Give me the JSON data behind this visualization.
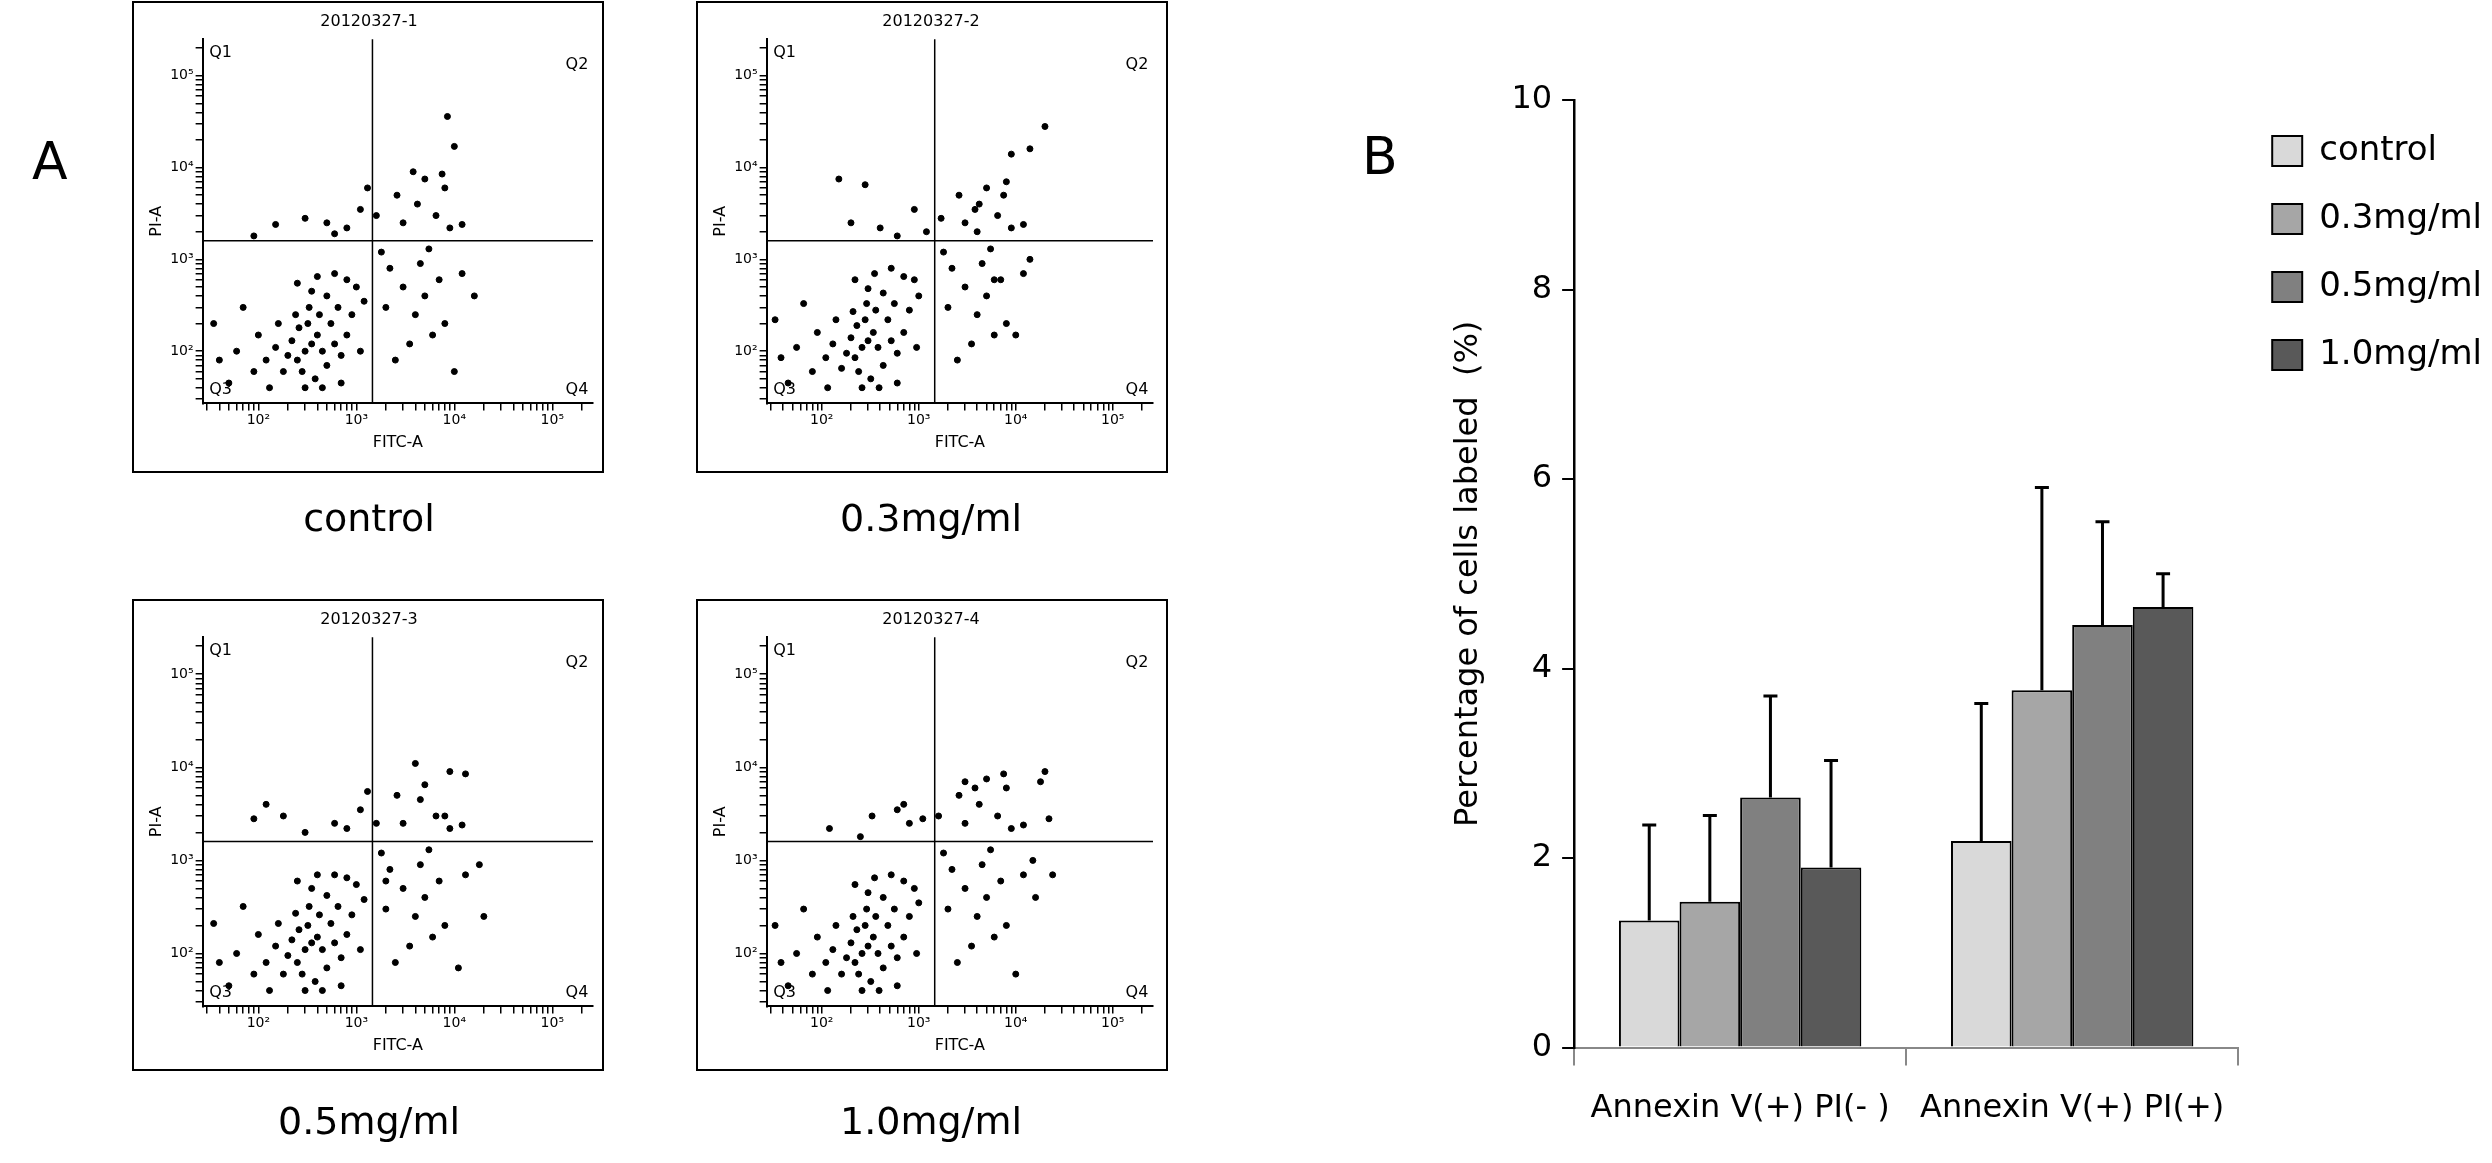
{
  "chart_data": [
    {
      "type": "scatter",
      "title": "20120327-1",
      "subtitle": "control",
      "xlabel": "FITC-A",
      "ylabel": "PI-A",
      "xlim": [
        27,
        260000
      ],
      "ylim": [
        27,
        250000
      ],
      "log": "xy",
      "grid": false,
      "marker": "circle",
      "xticks": [
        {
          "value": 30,
          "label": null
        },
        {
          "value": 40,
          "label": null
        },
        {
          "value": 50,
          "label": null
        },
        {
          "value": 60,
          "label": null
        },
        {
          "value": 70,
          "label": null
        },
        {
          "value": 80,
          "label": null
        },
        {
          "value": 90,
          "label": null
        },
        {
          "value": 100,
          "label": "10²"
        },
        {
          "value": 200,
          "label": null
        },
        {
          "value": 300,
          "label": null
        },
        {
          "value": 400,
          "label": null
        },
        {
          "value": 500,
          "label": null
        },
        {
          "value": 600,
          "label": null
        },
        {
          "value": 700,
          "label": null
        },
        {
          "value": 800,
          "label": null
        },
        {
          "value": 900,
          "label": null
        },
        {
          "value": 1000,
          "label": "10³"
        },
        {
          "value": 2000,
          "label": null
        },
        {
          "value": 3000,
          "label": null
        },
        {
          "value": 4000,
          "label": null
        },
        {
          "value": 5000,
          "label": null
        },
        {
          "value": 6000,
          "label": null
        },
        {
          "value": 7000,
          "label": null
        },
        {
          "value": 8000,
          "label": null
        },
        {
          "value": 9000,
          "label": null
        },
        {
          "value": 10000,
          "label": "10⁴"
        },
        {
          "value": 20000,
          "label": null
        },
        {
          "value": 30000,
          "label": null
        },
        {
          "value": 40000,
          "label": null
        },
        {
          "value": 50000,
          "label": null
        },
        {
          "value": 60000,
          "label": null
        },
        {
          "value": 70000,
          "label": null
        },
        {
          "value": 80000,
          "label": null
        },
        {
          "value": 90000,
          "label": null
        },
        {
          "value": 100000,
          "label": "10⁵"
        },
        {
          "value": 200000,
          "label": null
        }
      ],
      "yticks": [
        {
          "value": 30,
          "label": null
        },
        {
          "value": 40,
          "label": null
        },
        {
          "value": 50,
          "label": null
        },
        {
          "value": 60,
          "label": null
        },
        {
          "value": 70,
          "label": null
        },
        {
          "value": 80,
          "label": null
        },
        {
          "value": 90,
          "label": null
        },
        {
          "value": 100,
          "label": "10²"
        },
        {
          "value": 200,
          "label": null
        },
        {
          "value": 300,
          "label": null
        },
        {
          "value": 400,
          "label": null
        },
        {
          "value": 500,
          "label": null
        },
        {
          "value": 600,
          "label": null
        },
        {
          "value": 700,
          "label": null
        },
        {
          "value": 800,
          "label": null
        },
        {
          "value": 900,
          "label": null
        },
        {
          "value": 1000,
          "label": "10³"
        },
        {
          "value": 2000,
          "label": null
        },
        {
          "value": 3000,
          "label": null
        },
        {
          "value": 4000,
          "label": null
        },
        {
          "value": 5000,
          "label": null
        },
        {
          "value": 6000,
          "label": null
        },
        {
          "value": 7000,
          "label": null
        },
        {
          "value": 8000,
          "label": null
        },
        {
          "value": 9000,
          "label": null
        },
        {
          "value": 10000,
          "label": "10⁴"
        },
        {
          "value": 20000,
          "label": null
        },
        {
          "value": 30000,
          "label": null
        },
        {
          "value": 40000,
          "label": null
        },
        {
          "value": 50000,
          "label": null
        },
        {
          "value": 60000,
          "label": null
        },
        {
          "value": 70000,
          "label": null
        },
        {
          "value": 80000,
          "label": null
        },
        {
          "value": 90000,
          "label": null
        },
        {
          "value": 100000,
          "label": "10⁵"
        },
        {
          "value": 200000,
          "label": null
        }
      ],
      "ref_lines": [
        {
          "axis": "x",
          "value": 1460,
          "color": "#000000"
        },
        {
          "axis": "y",
          "value": 1600,
          "color": "#000000"
        }
      ],
      "annotations": [
        "A",
        "Q1",
        "Q2",
        "Q3",
        "Q4"
      ],
      "series": [
        {
          "color": "#000000",
          "x": [
            300,
            250,
            350,
            400,
            200,
            280,
            320,
            450,
            500,
            380,
            220,
            260,
            180,
            150,
            120,
            600,
            550,
            420,
            330,
            240,
            700,
            800,
            650,
            500,
            350,
            160,
            100,
            90,
            60,
            40,
            50,
            35,
            70,
            130,
            300,
            450,
            700,
            900,
            1000,
            800,
            600,
            400,
            250,
            1200,
            1100,
            2000,
            3000,
            4000,
            5000,
            6000,
            3500,
            2500,
            8000,
            2200,
            4500,
            7000,
            10000,
            12000,
            16000,
            1800,
            5500,
            3000,
            4200,
            6500,
            2600,
            5000,
            8000,
            9000,
            12000,
            3800,
            1600,
            7500,
            10000,
            8500,
            500,
            800,
            1100,
            300,
            1300,
            150,
            90,
            600
          ],
          "values": [
            100,
            80,
            120,
            150,
            90,
            60,
            200,
            100,
            70,
            50,
            130,
            180,
            60,
            110,
            80,
            120,
            200,
            250,
            300,
            250,
            90,
            150,
            300,
            400,
            450,
            200,
            150,
            60,
            100,
            80,
            45,
            200,
            300,
            40,
            40,
            40,
            45,
            250,
            500,
            600,
            700,
            650,
            550,
            350,
            100,
            300,
            500,
            250,
            400,
            150,
            120,
            80,
            200,
            800,
            900,
            600,
            60,
            700,
            400,
            1200,
            1300,
            2500,
            4000,
            3000,
            5000,
            7500,
            6000,
            2200,
            2400,
            9000,
            3000,
            8500,
            17000,
            36000,
            2500,
            2200,
            3500,
            2800,
            6000,
            2400,
            1800,
            1900
          ]
        }
      ]
    },
    {
      "type": "scatter",
      "title": "20120327-2",
      "subtitle": "0.3mg/ml",
      "xlabel": "FITC-A",
      "ylabel": "PI-A",
      "xlim": [
        27,
        260000
      ],
      "ylim": [
        27,
        250000
      ],
      "log": "xy",
      "grid": false,
      "marker": "circle",
      "xticks": [
        {
          "value": 30,
          "label": null
        },
        {
          "value": 40,
          "label": null
        },
        {
          "value": 50,
          "label": null
        },
        {
          "value": 60,
          "label": null
        },
        {
          "value": 70,
          "label": null
        },
        {
          "value": 80,
          "label": null
        },
        {
          "value": 90,
          "label": null
        },
        {
          "value": 100,
          "label": "10²"
        },
        {
          "value": 200,
          "label": null
        },
        {
          "value": 300,
          "label": null
        },
        {
          "value": 400,
          "label": null
        },
        {
          "value": 500,
          "label": null
        },
        {
          "value": 600,
          "label": null
        },
        {
          "value": 700,
          "label": null
        },
        {
          "value": 800,
          "label": null
        },
        {
          "value": 900,
          "label": null
        },
        {
          "value": 1000,
          "label": "10³"
        },
        {
          "value": 2000,
          "label": null
        },
        {
          "value": 3000,
          "label": null
        },
        {
          "value": 4000,
          "label": null
        },
        {
          "value": 5000,
          "label": null
        },
        {
          "value": 6000,
          "label": null
        },
        {
          "value": 7000,
          "label": null
        },
        {
          "value": 8000,
          "label": null
        },
        {
          "value": 9000,
          "label": null
        },
        {
          "value": 10000,
          "label": "10⁴"
        },
        {
          "value": 20000,
          "label": null
        },
        {
          "value": 30000,
          "label": null
        },
        {
          "value": 40000,
          "label": null
        },
        {
          "value": 50000,
          "label": null
        },
        {
          "value": 60000,
          "label": null
        },
        {
          "value": 70000,
          "label": null
        },
        {
          "value": 80000,
          "label": null
        },
        {
          "value": 90000,
          "label": null
        },
        {
          "value": 100000,
          "label": "10⁵"
        },
        {
          "value": 200000,
          "label": null
        }
      ],
      "yticks": [
        {
          "value": 30,
          "label": null
        },
        {
          "value": 40,
          "label": null
        },
        {
          "value": 50,
          "label": null
        },
        {
          "value": 60,
          "label": null
        },
        {
          "value": 70,
          "label": null
        },
        {
          "value": 80,
          "label": null
        },
        {
          "value": 90,
          "label": null
        },
        {
          "value": 100,
          "label": "10²"
        },
        {
          "value": 200,
          "label": null
        },
        {
          "value": 300,
          "label": null
        },
        {
          "value": 400,
          "label": null
        },
        {
          "value": 500,
          "label": null
        },
        {
          "value": 600,
          "label": null
        },
        {
          "value": 700,
          "label": null
        },
        {
          "value": 800,
          "label": null
        },
        {
          "value": 900,
          "label": null
        },
        {
          "value": 1000,
          "label": "10³"
        },
        {
          "value": 2000,
          "label": null
        },
        {
          "value": 3000,
          "label": null
        },
        {
          "value": 4000,
          "label": null
        },
        {
          "value": 5000,
          "label": null
        },
        {
          "value": 6000,
          "label": null
        },
        {
          "value": 7000,
          "label": null
        },
        {
          "value": 8000,
          "label": null
        },
        {
          "value": 9000,
          "label": null
        },
        {
          "value": 10000,
          "label": "10⁴"
        },
        {
          "value": 20000,
          "label": null
        },
        {
          "value": 30000,
          "label": null
        },
        {
          "value": 40000,
          "label": null
        },
        {
          "value": 50000,
          "label": null
        },
        {
          "value": 60000,
          "label": null
        },
        {
          "value": 70000,
          "label": null
        },
        {
          "value": 80000,
          "label": null
        },
        {
          "value": 90000,
          "label": null
        },
        {
          "value": 100000,
          "label": "10⁵"
        },
        {
          "value": 200000,
          "label": null
        }
      ],
      "ref_lines": [
        {
          "axis": "x",
          "value": 1460,
          "color": "#000000"
        },
        {
          "axis": "y",
          "value": 1600,
          "color": "#000000"
        }
      ],
      "annotations": [
        "Q1",
        "Q2",
        "Q3",
        "Q4"
      ],
      "series": [
        {
          "color": "#000000",
          "x": [
            260,
            220,
            300,
            340,
            180,
            240,
            280,
            380,
            430,
            320,
            200,
            230,
            160,
            130,
            110,
            520,
            480,
            360,
            290,
            210,
            600,
            700,
            560,
            430,
            300,
            140,
            90,
            80,
            55,
            38,
            45,
            33,
            65,
            115,
            260,
            390,
            600,
            800,
            900,
            700,
            520,
            350,
            220,
            1000,
            950,
            2000,
            3000,
            4000,
            5000,
            6000,
            3500,
            2500,
            8000,
            2200,
            4500,
            7000,
            10000,
            12000,
            14000,
            1800,
            5500,
            3000,
            4200,
            6500,
            2600,
            5000,
            8000,
            9000,
            12000,
            3800,
            1700,
            7500,
            14000,
            20000,
            9000,
            4000,
            6000,
            150,
            280,
            900,
            400,
            200,
            600,
            1200
          ],
          "values": [
            110,
            85,
            130,
            160,
            95,
            60,
            220,
            110,
            70,
            50,
            140,
            190,
            65,
            120,
            85,
            130,
            220,
            280,
            330,
            270,
            95,
            160,
            330,
            430,
            480,
            220,
            160,
            60,
            110,
            85,
            45,
            220,
            330,
            40,
            40,
            40,
            45,
            280,
            600,
            650,
            800,
            700,
            600,
            400,
            110,
            300,
            500,
            250,
            400,
            150,
            120,
            80,
            200,
            800,
            900,
            600,
            150,
            700,
            1000,
            1200,
            1300,
            2500,
            4000,
            3000,
            5000,
            6000,
            7000,
            2200,
            2400,
            3500,
            2800,
            5000,
            16000,
            28000,
            14000,
            2000,
            600,
            7500,
            6500,
            3500,
            2200,
            2500,
            1800,
            2000
          ]
        }
      ]
    },
    {
      "type": "scatter",
      "title": "20120327-3",
      "subtitle": "0.5mg/ml",
      "xlabel": "FITC-A",
      "ylabel": "PI-A",
      "xlim": [
        27,
        260000
      ],
      "ylim": [
        27,
        250000
      ],
      "log": "xy",
      "grid": false,
      "marker": "circle",
      "xticks": [
        {
          "value": 30,
          "label": null
        },
        {
          "value": 40,
          "label": null
        },
        {
          "value": 50,
          "label": null
        },
        {
          "value": 60,
          "label": null
        },
        {
          "value": 70,
          "label": null
        },
        {
          "value": 80,
          "label": null
        },
        {
          "value": 90,
          "label": null
        },
        {
          "value": 100,
          "label": "10²"
        },
        {
          "value": 200,
          "label": null
        },
        {
          "value": 300,
          "label": null
        },
        {
          "value": 400,
          "label": null
        },
        {
          "value": 500,
          "label": null
        },
        {
          "value": 600,
          "label": null
        },
        {
          "value": 700,
          "label": null
        },
        {
          "value": 800,
          "label": null
        },
        {
          "value": 900,
          "label": null
        },
        {
          "value": 1000,
          "label": "10³"
        },
        {
          "value": 2000,
          "label": null
        },
        {
          "value": 3000,
          "label": null
        },
        {
          "value": 4000,
          "label": null
        },
        {
          "value": 5000,
          "label": null
        },
        {
          "value": 6000,
          "label": null
        },
        {
          "value": 7000,
          "label": null
        },
        {
          "value": 8000,
          "label": null
        },
        {
          "value": 9000,
          "label": null
        },
        {
          "value": 10000,
          "label": "10⁴"
        },
        {
          "value": 20000,
          "label": null
        },
        {
          "value": 30000,
          "label": null
        },
        {
          "value": 40000,
          "label": null
        },
        {
          "value": 50000,
          "label": null
        },
        {
          "value": 60000,
          "label": null
        },
        {
          "value": 70000,
          "label": null
        },
        {
          "value": 80000,
          "label": null
        },
        {
          "value": 90000,
          "label": null
        },
        {
          "value": 100000,
          "label": "10⁵"
        },
        {
          "value": 200000,
          "label": null
        }
      ],
      "yticks": [
        {
          "value": 30,
          "label": null
        },
        {
          "value": 40,
          "label": null
        },
        {
          "value": 50,
          "label": null
        },
        {
          "value": 60,
          "label": null
        },
        {
          "value": 70,
          "label": null
        },
        {
          "value": 80,
          "label": null
        },
        {
          "value": 90,
          "label": null
        },
        {
          "value": 100,
          "label": "10²"
        },
        {
          "value": 200,
          "label": null
        },
        {
          "value": 300,
          "label": null
        },
        {
          "value": 400,
          "label": null
        },
        {
          "value": 500,
          "label": null
        },
        {
          "value": 600,
          "label": null
        },
        {
          "value": 700,
          "label": null
        },
        {
          "value": 800,
          "label": null
        },
        {
          "value": 900,
          "label": null
        },
        {
          "value": 1000,
          "label": "10³"
        },
        {
          "value": 2000,
          "label": null
        },
        {
          "value": 3000,
          "label": null
        },
        {
          "value": 4000,
          "label": null
        },
        {
          "value": 5000,
          "label": null
        },
        {
          "value": 6000,
          "label": null
        },
        {
          "value": 7000,
          "label": null
        },
        {
          "value": 8000,
          "label": null
        },
        {
          "value": 9000,
          "label": null
        },
        {
          "value": 10000,
          "label": "10⁴"
        },
        {
          "value": 20000,
          "label": null
        },
        {
          "value": 30000,
          "label": null
        },
        {
          "value": 40000,
          "label": null
        },
        {
          "value": 50000,
          "label": null
        },
        {
          "value": 60000,
          "label": null
        },
        {
          "value": 70000,
          "label": null
        },
        {
          "value": 80000,
          "label": null
        },
        {
          "value": 90000,
          "label": null
        },
        {
          "value": 100000,
          "label": "10⁵"
        },
        {
          "value": 200000,
          "label": null
        }
      ],
      "ref_lines": [
        {
          "axis": "x",
          "value": 1460,
          "color": "#000000"
        },
        {
          "axis": "y",
          "value": 1600,
          "color": "#000000"
        }
      ],
      "annotations": [
        "Q1",
        "Q2",
        "Q3",
        "Q4"
      ],
      "series": [
        {
          "color": "#000000",
          "x": [
            300,
            250,
            350,
            400,
            200,
            280,
            320,
            450,
            500,
            380,
            220,
            260,
            180,
            150,
            120,
            600,
            550,
            420,
            330,
            240,
            700,
            800,
            650,
            500,
            350,
            160,
            100,
            90,
            60,
            40,
            50,
            35,
            70,
            130,
            300,
            450,
            700,
            900,
            1000,
            800,
            600,
            400,
            250,
            1200,
            1100,
            2000,
            3000,
            4000,
            5000,
            6000,
            3500,
            2500,
            8000,
            2200,
            4500,
            7000,
            11000,
            13000,
            18000,
            1800,
            5500,
            3000,
            4500,
            6500,
            2600,
            5000,
            9000,
            9000,
            12000,
            4000,
            1600,
            8000,
            13000,
            2000,
            20000,
            600,
            180,
            90,
            120,
            800,
            1100,
            300,
            1300
          ],
          "values": [
            110,
            80,
            130,
            150,
            95,
            60,
            200,
            110,
            70,
            50,
            140,
            180,
            60,
            120,
            80,
            130,
            210,
            260,
            320,
            270,
            90,
            160,
            320,
            420,
            500,
            210,
            160,
            60,
            100,
            80,
            45,
            210,
            320,
            40,
            40,
            40,
            45,
            260,
            550,
            650,
            700,
            700,
            600,
            380,
            110,
            300,
            500,
            250,
            400,
            150,
            120,
            80,
            200,
            800,
            900,
            600,
            70,
            700,
            900,
            1200,
            1300,
            2500,
            4500,
            3000,
            5000,
            6500,
            9000,
            2200,
            2400,
            11000,
            2500,
            3000,
            8500,
            600,
            250,
            2500,
            3000,
            2800,
            4000,
            2200,
            3500,
            2000,
            5500
          ]
        }
      ]
    },
    {
      "type": "scatter",
      "title": "20120327-4",
      "subtitle": "1.0mg/ml",
      "xlabel": "FITC-A",
      "ylabel": "PI-A",
      "xlim": [
        27,
        260000
      ],
      "ylim": [
        27,
        250000
      ],
      "log": "xy",
      "grid": false,
      "marker": "circle",
      "xticks": [
        {
          "value": 30,
          "label": null
        },
        {
          "value": 40,
          "label": null
        },
        {
          "value": 50,
          "label": null
        },
        {
          "value": 60,
          "label": null
        },
        {
          "value": 70,
          "label": null
        },
        {
          "value": 80,
          "label": null
        },
        {
          "value": 90,
          "label": null
        },
        {
          "value": 100,
          "label": "10²"
        },
        {
          "value": 200,
          "label": null
        },
        {
          "value": 300,
          "label": null
        },
        {
          "value": 400,
          "label": null
        },
        {
          "value": 500,
          "label": null
        },
        {
          "value": 600,
          "label": null
        },
        {
          "value": 700,
          "label": null
        },
        {
          "value": 800,
          "label": null
        },
        {
          "value": 900,
          "label": null
        },
        {
          "value": 1000,
          "label": "10³"
        },
        {
          "value": 2000,
          "label": null
        },
        {
          "value": 3000,
          "label": null
        },
        {
          "value": 4000,
          "label": null
        },
        {
          "value": 5000,
          "label": null
        },
        {
          "value": 6000,
          "label": null
        },
        {
          "value": 7000,
          "label": null
        },
        {
          "value": 8000,
          "label": null
        },
        {
          "value": 9000,
          "label": null
        },
        {
          "value": 10000,
          "label": "10⁴"
        },
        {
          "value": 20000,
          "label": null
        },
        {
          "value": 30000,
          "label": null
        },
        {
          "value": 40000,
          "label": null
        },
        {
          "value": 50000,
          "label": null
        },
        {
          "value": 60000,
          "label": null
        },
        {
          "value": 70000,
          "label": null
        },
        {
          "value": 80000,
          "label": null
        },
        {
          "value": 90000,
          "label": null
        },
        {
          "value": 100000,
          "label": "10⁵"
        },
        {
          "value": 200000,
          "label": null
        }
      ],
      "yticks": [
        {
          "value": 30,
          "label": null
        },
        {
          "value": 40,
          "label": null
        },
        {
          "value": 50,
          "label": null
        },
        {
          "value": 60,
          "label": null
        },
        {
          "value": 70,
          "label": null
        },
        {
          "value": 80,
          "label": null
        },
        {
          "value": 90,
          "label": null
        },
        {
          "value": 100,
          "label": "10²"
        },
        {
          "value": 200,
          "label": null
        },
        {
          "value": 300,
          "label": null
        },
        {
          "value": 400,
          "label": null
        },
        {
          "value": 500,
          "label": null
        },
        {
          "value": 600,
          "label": null
        },
        {
          "value": 700,
          "label": null
        },
        {
          "value": 800,
          "label": null
        },
        {
          "value": 900,
          "label": null
        },
        {
          "value": 1000,
          "label": "10³"
        },
        {
          "value": 2000,
          "label": null
        },
        {
          "value": 3000,
          "label": null
        },
        {
          "value": 4000,
          "label": null
        },
        {
          "value": 5000,
          "label": null
        },
        {
          "value": 6000,
          "label": null
        },
        {
          "value": 7000,
          "label": null
        },
        {
          "value": 8000,
          "label": null
        },
        {
          "value": 9000,
          "label": null
        },
        {
          "value": 10000,
          "label": "10⁴"
        },
        {
          "value": 20000,
          "label": null
        },
        {
          "value": 30000,
          "label": null
        },
        {
          "value": 40000,
          "label": null
        },
        {
          "value": 50000,
          "label": null
        },
        {
          "value": 60000,
          "label": null
        },
        {
          "value": 70000,
          "label": null
        },
        {
          "value": 80000,
          "label": null
        },
        {
          "value": 90000,
          "label": null
        },
        {
          "value": 100000,
          "label": "10⁵"
        },
        {
          "value": 200000,
          "label": null
        }
      ],
      "ref_lines": [
        {
          "axis": "x",
          "value": 1460,
          "color": "#000000"
        },
        {
          "axis": "y",
          "value": 1600,
          "color": "#000000"
        }
      ],
      "annotations": [
        "Q1",
        "Q2",
        "Q3",
        "Q4"
      ],
      "series": [
        {
          "color": "#000000",
          "x": [
            260,
            220,
            300,
            340,
            180,
            240,
            280,
            380,
            430,
            320,
            200,
            230,
            160,
            130,
            110,
            520,
            480,
            360,
            290,
            210,
            600,
            700,
            560,
            430,
            300,
            140,
            90,
            80,
            55,
            38,
            45,
            33,
            65,
            115,
            260,
            390,
            600,
            800,
            900,
            700,
            520,
            350,
            220,
            1000,
            950,
            2000,
            3000,
            4000,
            5000,
            6000,
            3500,
            2500,
            8000,
            2200,
            4500,
            7000,
            10000,
            12000,
            16000,
            1800,
            5500,
            3000,
            4200,
            6500,
            2600,
            5000,
            8000,
            9000,
            12000,
            3800,
            1600,
            7500,
            20000,
            22000,
            18000,
            3000,
            15000,
            24000,
            120,
            330,
            600,
            800,
            1100,
            250,
            700
          ],
          "values": [
            100,
            80,
            120,
            150,
            90,
            60,
            200,
            100,
            70,
            50,
            130,
            180,
            60,
            110,
            80,
            120,
            200,
            250,
            300,
            250,
            90,
            150,
            300,
            400,
            450,
            200,
            150,
            60,
            100,
            80,
            45,
            200,
            300,
            40,
            40,
            40,
            45,
            250,
            500,
            600,
            700,
            650,
            550,
            350,
            100,
            300,
            500,
            250,
            400,
            150,
            120,
            80,
            200,
            800,
            900,
            600,
            60,
            700,
            400,
            1200,
            1300,
            2500,
            4000,
            3000,
            5000,
            7500,
            6000,
            2200,
            2400,
            6000,
            3000,
            8500,
            9000,
            2800,
            7000,
            7000,
            1000,
            700,
            2200,
            3000,
            3500,
            2500,
            2800,
            1800,
            4000
          ]
        }
      ]
    },
    {
      "type": "bar",
      "annotations": [
        "B"
      ],
      "ylabel": "Percentage of cells labeled  (%)",
      "categories": [
        "Annexin V(+) PI(- )",
        "Annexin V(+) PI(+)"
      ],
      "ylim": [
        0,
        10
      ],
      "yticks": [
        0,
        2,
        4,
        6,
        8,
        10
      ],
      "grid": false,
      "legend": "top right",
      "series": [
        {
          "name": "control",
          "color": "#d9d9d9",
          "values": [
            1.34,
            2.18
          ],
          "errors": [
            [
              1.34,
              2.35
            ],
            [
              2.18,
              3.63
            ]
          ]
        },
        {
          "name": "0.3mg/ml",
          "color": "#a6a6a6",
          "values": [
            1.54,
            3.77
          ],
          "errors": [
            [
              1.54,
              2.45
            ],
            [
              3.77,
              5.91
            ]
          ]
        },
        {
          "name": "0.5mg/ml",
          "color": "#808080",
          "values": [
            2.64,
            4.46
          ],
          "errors": [
            [
              2.64,
              3.71
            ],
            [
              4.46,
              5.55
            ]
          ]
        },
        {
          "name": "1.0mg/ml",
          "color": "#595959",
          "values": [
            1.9,
            4.65
          ],
          "errors": [
            [
              1.9,
              3.03
            ],
            [
              4.65,
              5.0
            ]
          ]
        }
      ]
    }
  ]
}
